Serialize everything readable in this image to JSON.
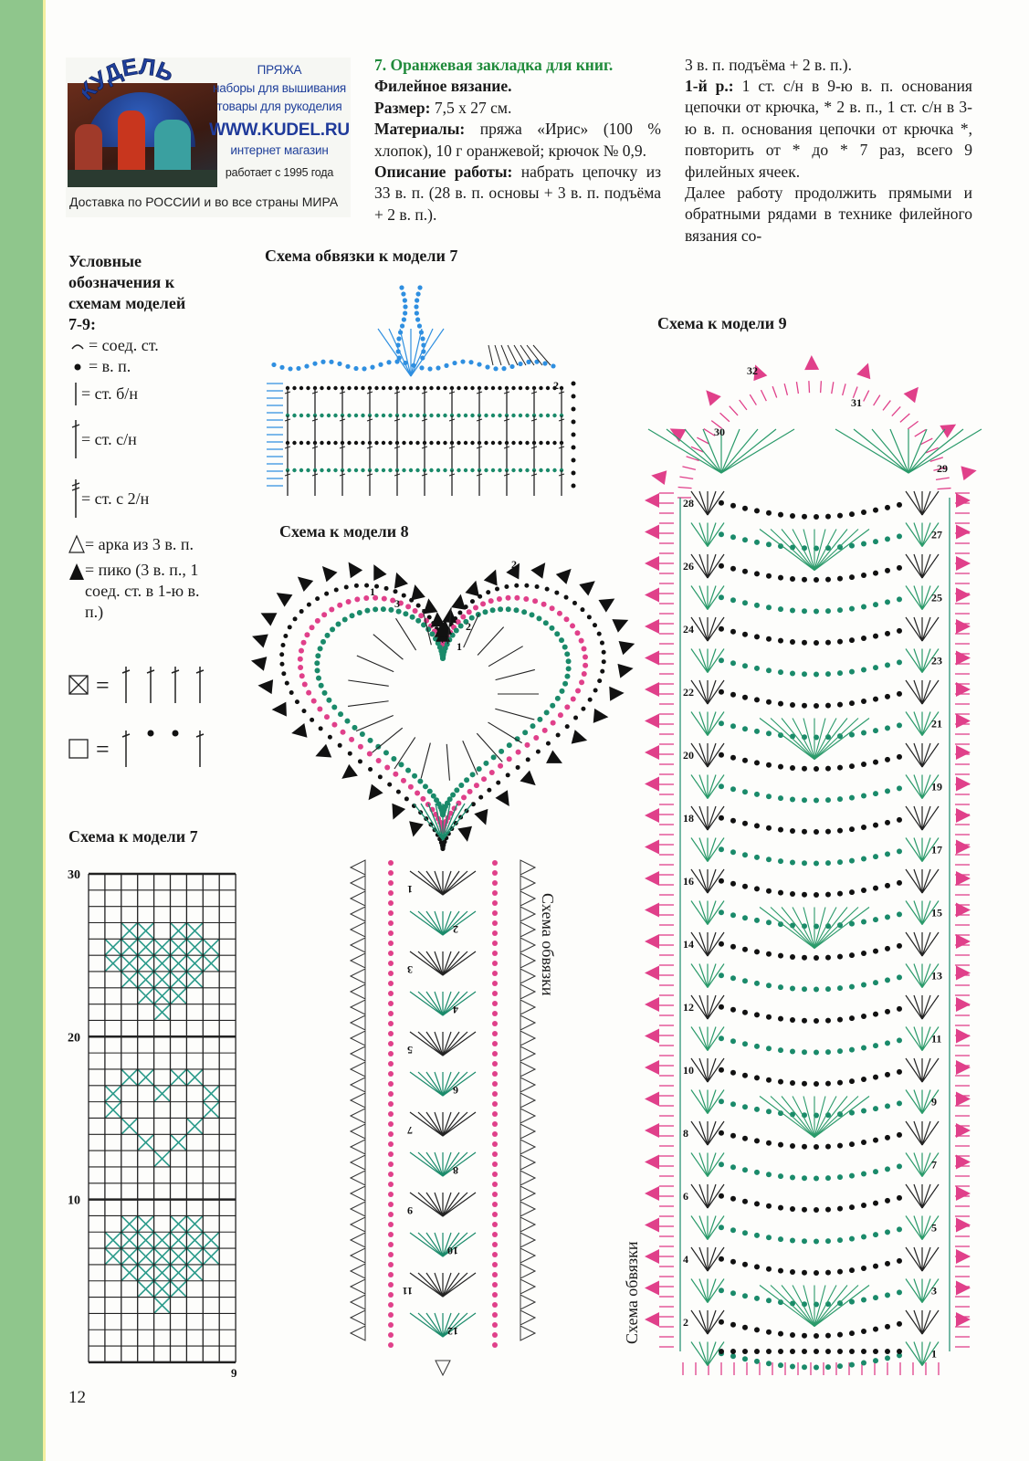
{
  "colors": {
    "strip": "#8fc68c",
    "title": "#1f8a3a",
    "pink": "#e0408a",
    "teal": "#1a8a7a",
    "blue": "#2f8fe0",
    "ad_blue": "#1f3f9a"
  },
  "ad": {
    "logo": "КУДЕЛЬ",
    "line1": "ПРЯЖА",
    "line2": "наборы для вышивания",
    "line3": "товары для рукоделия",
    "url": "WWW.KUDEL.RU",
    "line4": "интернет магазин",
    "since": "работает с 1995 года",
    "delivery": "Доставка по РОССИИ и во все страны МИРА"
  },
  "article": {
    "title": "7. Оранжевая закладка для книг.",
    "technique": "Филейное вязание.",
    "size_label": "Размер:",
    "size": " 7,5 х 27 см.",
    "materials_label": "Материалы:",
    "materials": " пряжа «Ирис» (100 % хлопок), 10 г оранжевой; крючок № 0,9.",
    "desc_label": "Описание работы:",
    "desc": " набрать цепочку из 33 в. п. (28 в. п. основы + 3 в. п. подъёма + 2 в. п.).",
    "row1_label": "1-й р.:",
    "row1": " 1 ст. с/н в 9-ю в. п. основания цепочки от крючка, * 2 в. п., 1 ст. с/н в 3-ю в. п. основания цепочки от крючка *, повторить от * до * 7 раз, всего 9 филейных ячеек.",
    "continue": "Далее работу продолжить прямыми и обратными рядами в технике филейного вязания со-"
  },
  "legend": {
    "title": "Условные обозначения к схемам моделей 7-9:",
    "items": [
      {
        "icon": "slip-stitch-arc",
        "text": "= соед. ст."
      },
      {
        "icon": "chain-dot",
        "text": "= в. п."
      },
      {
        "icon": "single-crochet-bar",
        "text": "= ст. б/н"
      },
      {
        "icon": "double-crochet",
        "text": "= ст. с/н"
      },
      {
        "icon": "treble-crochet",
        "text": "= ст. с 2/н"
      },
      {
        "icon": "open-triangle",
        "text": "= арка из 3 в. п."
      },
      {
        "icon": "filled-triangle",
        "text": "= пико (3 в. п., 1 соед. ст. в 1-ю в. п.)"
      },
      {
        "icon": "filled-square",
        "text": "="
      },
      {
        "icon": "empty-square",
        "text": "="
      }
    ]
  },
  "headings": {
    "edging7": "Схема обвязки к модели 7",
    "model8": "Схема к модели 8",
    "model9": "Схема к модели 9",
    "model7": "Схема к модели 7",
    "edging_vertical_8": "Схема обвязки",
    "edging_vertical_9": "Схема обвязки"
  },
  "edging7_labels": [
    "2"
  ],
  "model8_heart_labels": [
    "1",
    "2",
    "3",
    "1",
    "2"
  ],
  "model8_row_labels": [
    "1",
    "2",
    "3",
    "4",
    "5",
    "6",
    "7",
    "8",
    "9",
    "10",
    "11",
    "12"
  ],
  "model9_row_labels": [
    "1",
    "2",
    "3",
    "4",
    "5",
    "6",
    "7",
    "8",
    "9",
    "10",
    "11",
    "12",
    "13",
    "14",
    "15",
    "16",
    "17",
    "18",
    "19",
    "20",
    "21",
    "22",
    "23",
    "24",
    "25",
    "26",
    "27",
    "28",
    "29",
    "30",
    "31",
    "32"
  ],
  "chart_data": {
    "type": "table",
    "columns": 9,
    "rows": 30,
    "row_tick_labels": [
      "30",
      "20",
      "10"
    ],
    "col_tick_label": "9",
    "filled_cells_by_row_from_top": [
      [],
      [],
      [],
      [
        2,
        3,
        5,
        6
      ],
      [
        1,
        2,
        3,
        4,
        5,
        6,
        7
      ],
      [
        1,
        2,
        3,
        4,
        5,
        6,
        7
      ],
      [
        2,
        3,
        4,
        5,
        6
      ],
      [
        3,
        4,
        5
      ],
      [
        4
      ],
      [],
      [],
      [],
      [
        2,
        3,
        5,
        6
      ],
      [
        1,
        4,
        7
      ],
      [
        1,
        7
      ],
      [
        2,
        6
      ],
      [
        3,
        5
      ],
      [
        4
      ],
      [],
      [],
      [],
      [
        2,
        3,
        5,
        6
      ],
      [
        1,
        2,
        3,
        4,
        5,
        6,
        7
      ],
      [
        1,
        2,
        3,
        4,
        5,
        6,
        7
      ],
      [
        2,
        3,
        4,
        5,
        6
      ],
      [
        3,
        4,
        5
      ],
      [
        4
      ],
      [],
      [],
      []
    ]
  },
  "page_number": "12"
}
